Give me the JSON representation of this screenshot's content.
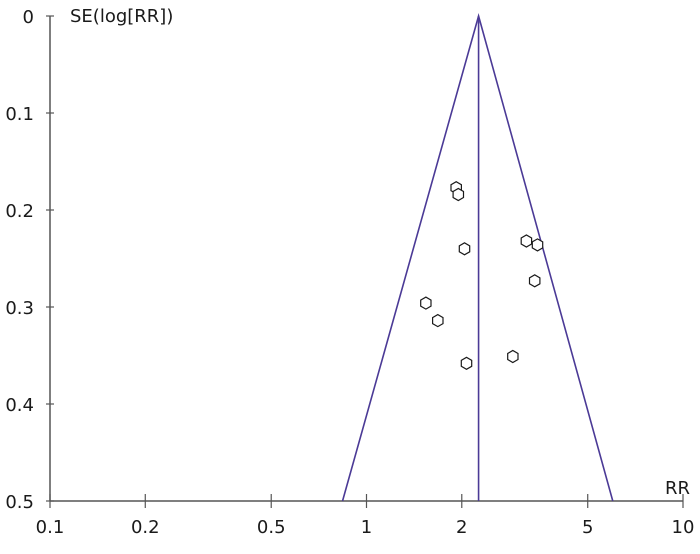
{
  "chart_data": {
    "type": "scatter",
    "title": "",
    "xlabel": "RR",
    "ylabel": "SE(log[RR])",
    "x_scale": "log",
    "xlim": [
      0.1,
      10
    ],
    "ylim": [
      0,
      0.5
    ],
    "y_inverted": true,
    "x_ticks": [
      "0.1",
      "0.2",
      "0.5",
      "1",
      "2",
      "5",
      "10"
    ],
    "y_ticks": [
      "0",
      "0.1",
      "0.2",
      "0.3",
      "0.4",
      "0.5"
    ],
    "grid": false,
    "pooled_rr": 2.26,
    "funnel": {
      "apex": [
        2.26,
        0
      ],
      "bottom_left": [
        0.84,
        0.5
      ],
      "bottom_right": [
        6.0,
        0.5
      ]
    },
    "line_color": "#4b3a96",
    "marker_color": "#1a1a1a",
    "points": [
      {
        "rr": 1.92,
        "se": 0.177
      },
      {
        "rr": 1.95,
        "se": 0.184
      },
      {
        "rr": 2.04,
        "se": 0.24
      },
      {
        "rr": 3.2,
        "se": 0.232
      },
      {
        "rr": 3.47,
        "se": 0.236
      },
      {
        "rr": 3.4,
        "se": 0.273
      },
      {
        "rr": 1.54,
        "se": 0.296
      },
      {
        "rr": 1.68,
        "se": 0.314
      },
      {
        "rr": 2.9,
        "se": 0.351
      },
      {
        "rr": 2.07,
        "se": 0.358
      }
    ]
  }
}
